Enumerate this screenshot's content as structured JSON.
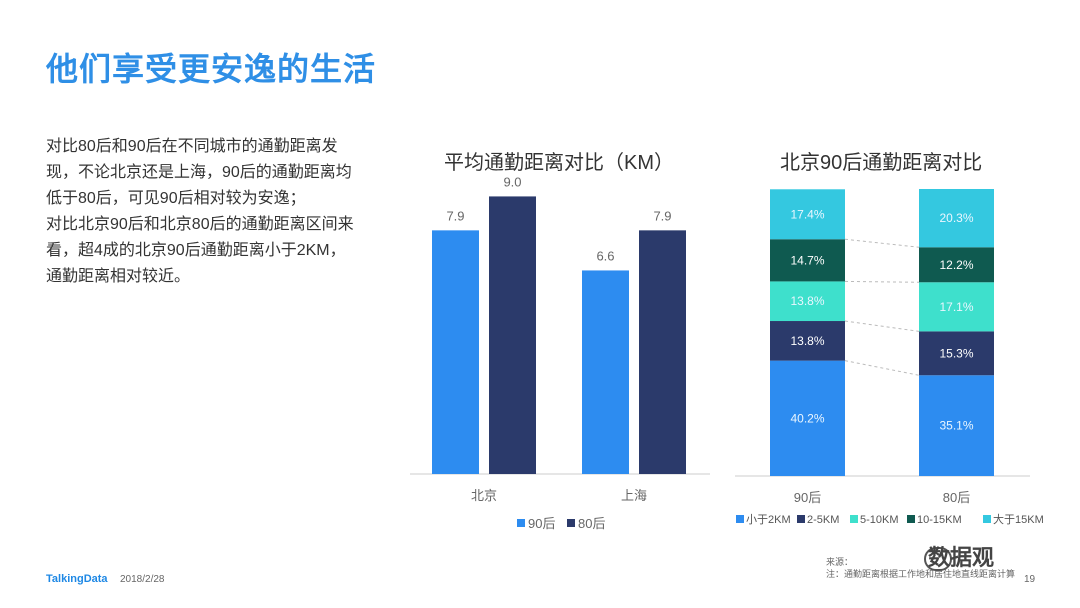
{
  "title": "他们享受更安逸的生活",
  "description_lines": [
    "对比80后和90后在不同城市的通勤距离发",
    "现，不论北京还是上海，90后的通勤距离均",
    "低于80后，可见90后相对较为安逸；",
    "对比北京90后和北京80后的通勤距离区间来",
    "看，超4成的北京90后通勤距离小于2KM，",
    "通勤距离相对较近。"
  ],
  "chart_data": [
    {
      "type": "bar",
      "title": "平均通勤距离对比（KM）",
      "categories": [
        "北京",
        "上海"
      ],
      "series": [
        {
          "name": "90后",
          "values": [
            7.9,
            6.6
          ],
          "color": "#2d8cf0"
        },
        {
          "name": "80后",
          "values": [
            9.0,
            7.9
          ],
          "color": "#2b3a6b"
        }
      ],
      "ylim": [
        0,
        10
      ],
      "grid": false,
      "legend": "bottom"
    },
    {
      "type": "bar",
      "stacked": true,
      "percent": true,
      "title": "北京90后通勤距离对比",
      "categories": [
        "90后",
        "80后"
      ],
      "series": [
        {
          "name": "小于2KM",
          "values": [
            40.2,
            35.1
          ],
          "labels": [
            "40.2%",
            "35.1%"
          ],
          "color": "#2d8cf0"
        },
        {
          "name": "2-5KM",
          "values": [
            13.8,
            15.3
          ],
          "labels": [
            "13.8%",
            "15.3%"
          ],
          "color": "#2b3a6b"
        },
        {
          "name": "5-10KM",
          "values": [
            13.8,
            17.1
          ],
          "labels": [
            "13.8%",
            "17.1%"
          ],
          "color": "#3ee0cc"
        },
        {
          "name": "10-15KM",
          "values": [
            14.7,
            12.2
          ],
          "labels": [
            "14.7%",
            "12.2%"
          ],
          "color": "#0f5a50"
        },
        {
          "name": "大于15KM",
          "values": [
            17.4,
            20.3
          ],
          "labels": [
            "17.4%",
            "20.3%"
          ],
          "color": "#34c8e0"
        }
      ],
      "ylim": [
        0,
        100
      ],
      "legend": "bottom"
    }
  ],
  "footer": {
    "logo": "TalkingData",
    "date": "2018/2/28",
    "source_line1": "来源：",
    "source_line2": "注：通勤距离根据工作地和居住地直线距离计算",
    "page": "19",
    "watermark": "数据观"
  },
  "colors": {
    "title": "#2f8fe6",
    "axis": "#cccccc"
  }
}
